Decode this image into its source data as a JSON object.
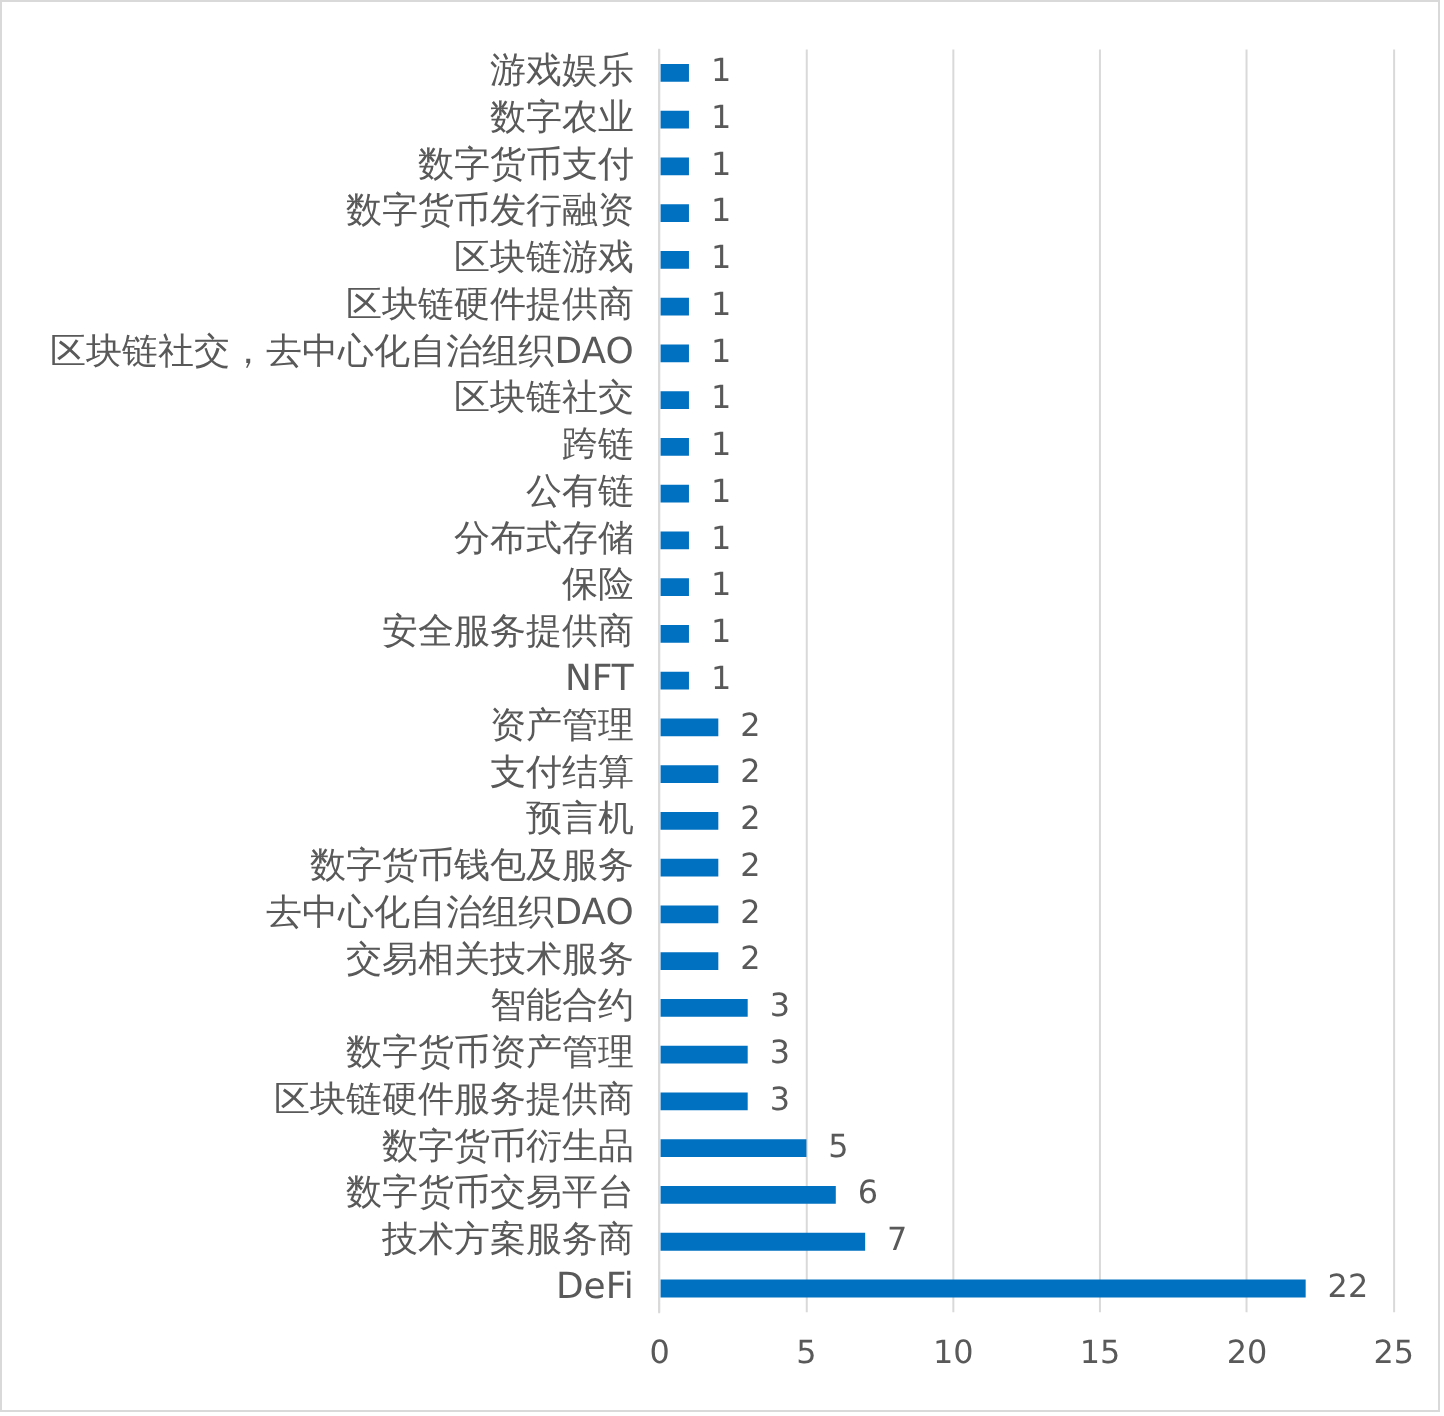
{
  "chart_data": {
    "type": "bar",
    "orientation": "horizontal",
    "categories": [
      "游戏娱乐",
      "数字农业",
      "数字货币支付",
      "数字货币发行融资",
      "区块链游戏",
      "区块链硬件提供商",
      "区块链社交，去中心化自治组织DAO",
      "区块链社交",
      "跨链",
      "公有链",
      "分布式存储",
      "保险",
      "安全服务提供商",
      "NFT",
      "资产管理",
      "支付结算",
      "预言机",
      "数字货币钱包及服务",
      "去中心化自治组织DAO",
      "交易相关技术服务",
      "智能合约",
      "数字货币资产管理",
      "区块链硬件服务提供商",
      "数字货币衍生品",
      "数字货币交易平台",
      "技术方案服务商",
      "DeFi"
    ],
    "values": [
      1,
      1,
      1,
      1,
      1,
      1,
      1,
      1,
      1,
      1,
      1,
      1,
      1,
      1,
      2,
      2,
      2,
      2,
      2,
      2,
      3,
      3,
      3,
      5,
      6,
      7,
      22
    ],
    "color": "#0070c0",
    "xlim": [
      0,
      25
    ],
    "xticks": [
      0,
      5,
      10,
      15,
      20,
      25
    ],
    "grid": "x",
    "data_labels": true
  }
}
